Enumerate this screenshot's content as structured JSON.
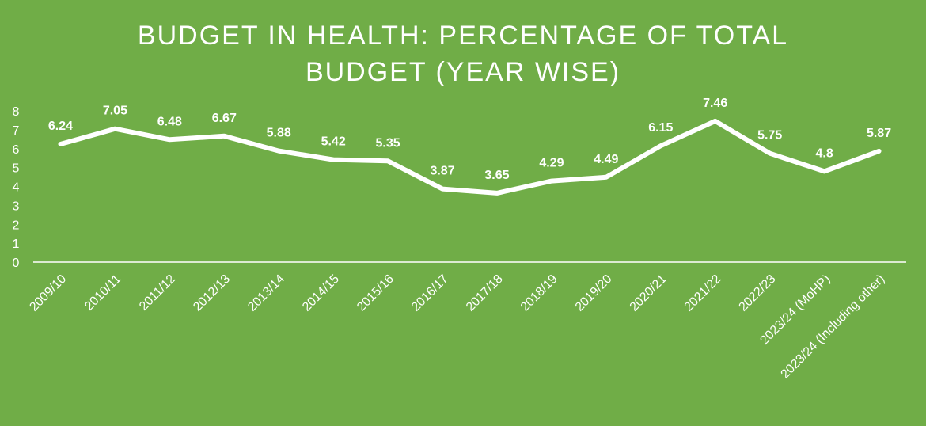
{
  "title_line1": "BUDGET IN HEALTH: PERCENTAGE OF TOTAL",
  "title_line2": "BUDGET (YEAR WISE)",
  "colors": {
    "background": "#70ad47",
    "line": "#ffffff",
    "text": "#ffffff"
  },
  "chart_data": {
    "type": "line",
    "title": "BUDGET IN HEALTH: PERCENTAGE OF TOTAL BUDGET (YEAR WISE)",
    "xlabel": "",
    "ylabel": "",
    "categories": [
      "2009/10",
      "2010/11",
      "2011/12",
      "2012/13",
      "2013/14",
      "2014/15",
      "2015/16",
      "2016/17",
      "2017/18",
      "2018/19",
      "2019/20",
      "2020/21",
      "2021/22",
      "2022/23",
      "2023/24 (MoHP)",
      "2023/24 (Including other)"
    ],
    "values": [
      6.24,
      7.05,
      6.48,
      6.67,
      5.88,
      5.42,
      5.35,
      3.87,
      3.65,
      4.29,
      4.49,
      6.15,
      7.46,
      5.75,
      4.8,
      5.87
    ],
    "data_labels": [
      "6.24",
      "7.05",
      "6.48",
      "6.67",
      "5.88",
      "5.42",
      "5.35",
      "3.87",
      "3.65",
      "4.29",
      "4.49",
      "6.15",
      "7.46",
      "5.75",
      "4.8",
      "5.87"
    ],
    "ylim": [
      0,
      8
    ],
    "yticks": [
      "0",
      "1",
      "2",
      "3",
      "4",
      "5",
      "6",
      "7",
      "8"
    ],
    "grid": false,
    "drop_lines": true,
    "legend": "none"
  }
}
